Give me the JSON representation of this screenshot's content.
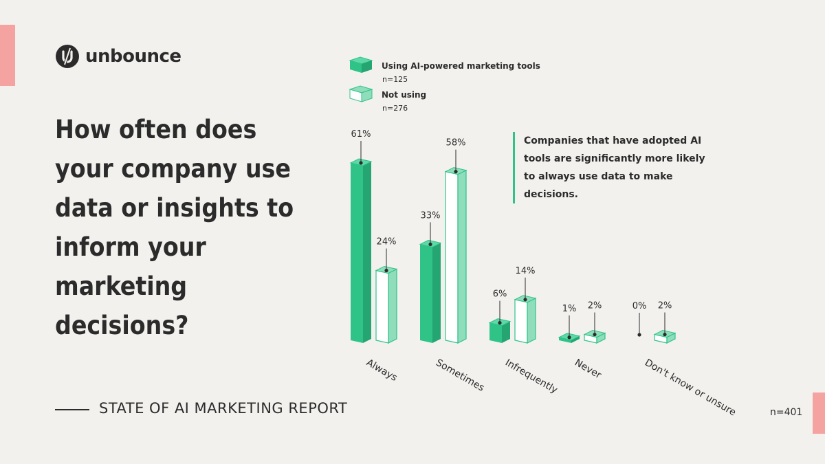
{
  "brand": {
    "name": "unbounce"
  },
  "question": "How often does your company use data or insights to inform your marketing decisions?",
  "report": {
    "title": "STATE OF AI MARKETING REPORT"
  },
  "sample_size": "n=401",
  "callout": "Companies that have adopted AI tools are significantly more likely to always use data to make decisions.",
  "legend": [
    {
      "label": "Using AI-powered marketing tools",
      "n": "n=125"
    },
    {
      "label": "Not using",
      "n": "n=276"
    }
  ],
  "colors": {
    "accent_pink": "#f5a3a0",
    "ai_front": "#2fc388",
    "ai_side": "#24a571",
    "ai_top": "#5fd8a8",
    "nonai_front": "#ffffff",
    "nonai_side": "#8fddbb",
    "nonai_top": "#8fddbb",
    "stroke": "#2fc388",
    "text": "#2b2b2b",
    "background": "#f3f1ee"
  },
  "chart_data": {
    "type": "bar",
    "categories": [
      "Always",
      "Sometimes",
      "Infrequently",
      "Never",
      "Don't know or unsure"
    ],
    "series": [
      {
        "name": "Using AI-powered marketing tools",
        "values": [
          61,
          33,
          6,
          1,
          0
        ],
        "labels": [
          "61%",
          "33%",
          "6%",
          "1%",
          "0%"
        ]
      },
      {
        "name": "Not using",
        "values": [
          24,
          58,
          14,
          2,
          2
        ],
        "labels": [
          "24%",
          "58%",
          "14%",
          "2%",
          "2%"
        ]
      }
    ],
    "ylim": [
      0,
      65
    ],
    "grid": false,
    "legend_position": "top-left"
  }
}
